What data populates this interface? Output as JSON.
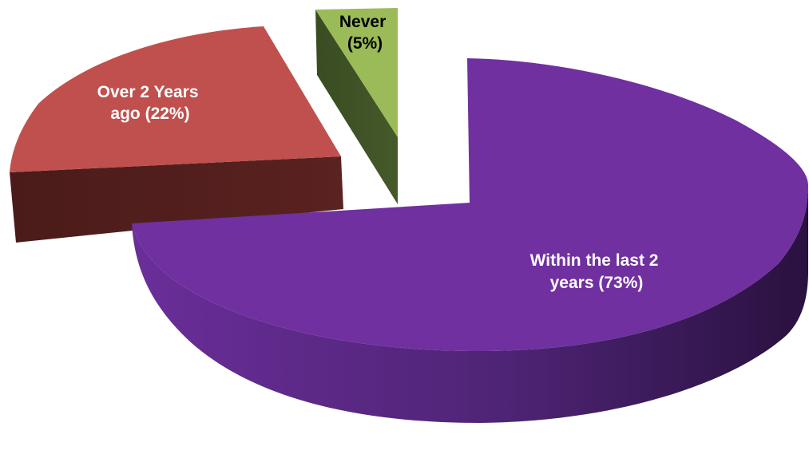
{
  "chart_data": {
    "type": "pie",
    "style": "3d-exploded",
    "title": "",
    "slices": [
      {
        "key": "within",
        "label_lines": [
          "Within the last 2",
          "years (73%)"
        ],
        "value": 73,
        "color": "#7030A0",
        "side_color": "#3E1A5A",
        "label_color": "#ffffff"
      },
      {
        "key": "over",
        "label_lines": [
          "Over 2 Years",
          "ago (22%)"
        ],
        "value": 22,
        "color": "#C0504D",
        "side_color": "#4F1E1C",
        "label_color": "#ffffff"
      },
      {
        "key": "never",
        "label_lines": [
          "Never",
          "(5%)"
        ],
        "value": 5,
        "color": "#9BBB59",
        "side_color": "#3E5025",
        "label_color": "#000000"
      }
    ]
  }
}
